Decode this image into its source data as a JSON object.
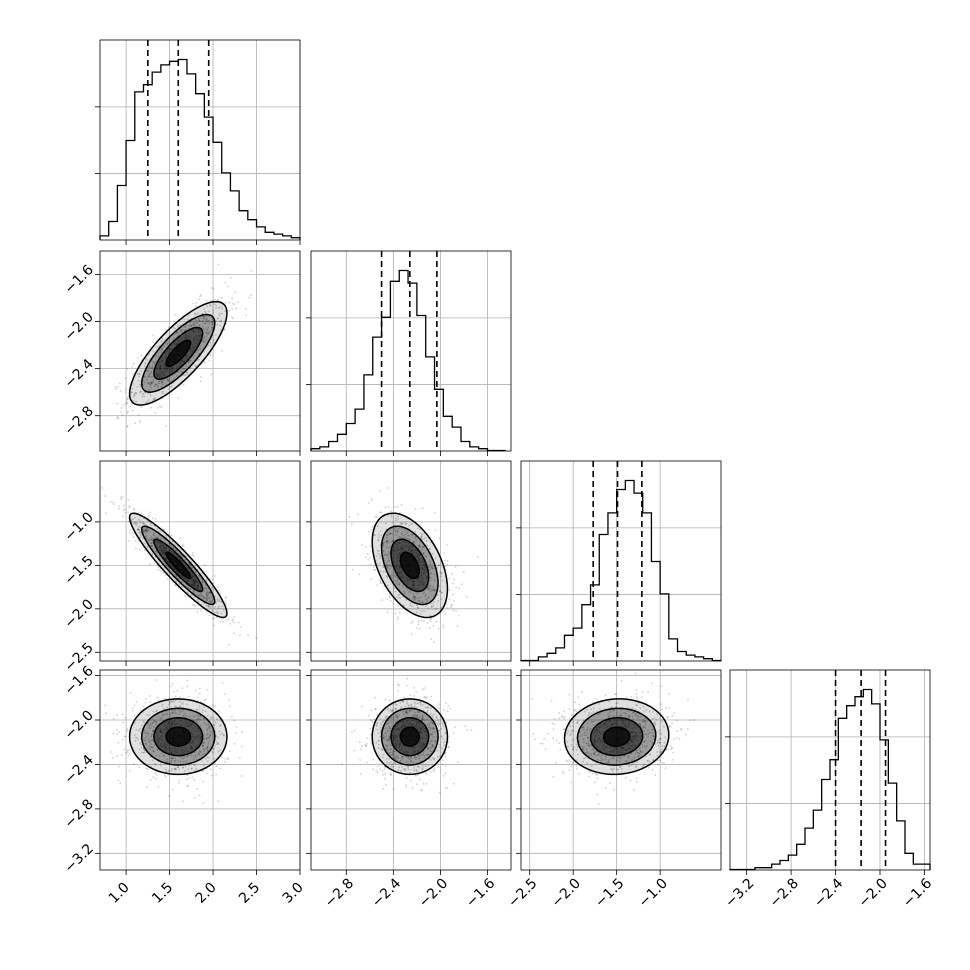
{
  "chart_data": {
    "type": "corner",
    "title": "",
    "n_params": 4,
    "param_labels": [
      "",
      "",
      "",
      ""
    ],
    "grid": true,
    "colors": {
      "line": "#000000",
      "grid": "#b0b0b0",
      "density": "#000000"
    },
    "params": [
      {
        "range": [
          0.7,
          3.0
        ],
        "ticks": [
          1.0,
          1.5,
          2.0,
          2.5,
          3.0
        ],
        "tick_labels": [
          "1.0",
          "1.5",
          "2.0",
          "2.5",
          "3.0"
        ],
        "quantiles": [
          1.25,
          1.6,
          1.95
        ],
        "hist_bins": [
          0.7,
          0.8,
          0.9,
          1.0,
          1.1,
          1.2,
          1.3,
          1.4,
          1.5,
          1.6,
          1.7,
          1.8,
          1.9,
          2.0,
          2.1,
          2.2,
          2.3,
          2.4,
          2.5,
          2.6,
          2.7,
          2.8,
          2.9,
          3.0
        ],
        "hist_counts": [
          0.02,
          0.1,
          0.3,
          0.55,
          0.82,
          0.86,
          0.93,
          0.97,
          0.99,
          1.0,
          0.92,
          0.81,
          0.68,
          0.54,
          0.37,
          0.27,
          0.16,
          0.11,
          0.07,
          0.04,
          0.03,
          0.02,
          0.01
        ]
      },
      {
        "range": [
          -3.1,
          -1.4
        ],
        "ticks": [
          -2.8,
          -2.4,
          -2.0,
          -1.6
        ],
        "tick_labels": [
          "−2.8",
          "−2.4",
          "−2.0",
          "−1.6"
        ],
        "quantiles": [
          -2.5,
          -2.26,
          -2.03
        ],
        "hist_bins": [
          -3.1,
          -3.025,
          -2.95,
          -2.875,
          -2.8,
          -2.725,
          -2.65,
          -2.575,
          -2.5,
          -2.425,
          -2.35,
          -2.275,
          -2.2,
          -2.125,
          -2.05,
          -1.975,
          -1.9,
          -1.825,
          -1.75,
          -1.675,
          -1.6,
          -1.525,
          -1.45
        ],
        "hist_counts": [
          0.01,
          0.02,
          0.05,
          0.09,
          0.15,
          0.23,
          0.42,
          0.63,
          0.74,
          0.94,
          1.0,
          0.93,
          0.75,
          0.52,
          0.34,
          0.19,
          0.13,
          0.05,
          0.02,
          0.01,
          0.0,
          0.0
        ]
      },
      {
        "range": [
          -2.6,
          -0.3
        ],
        "ticks": [
          -2.5,
          -2.0,
          -1.5,
          -1.0
        ],
        "tick_labels": [
          "−2.5",
          "−2.0",
          "−1.5",
          "−1.0"
        ],
        "quantiles": [
          -1.77,
          -1.49,
          -1.21
        ],
        "hist_bins": [
          -2.6,
          -2.5,
          -2.4,
          -2.3,
          -2.2,
          -2.1,
          -2.0,
          -1.9,
          -1.8,
          -1.7,
          -1.6,
          -1.5,
          -1.4,
          -1.3,
          -1.2,
          -1.1,
          -1.0,
          -0.9,
          -0.8,
          -0.7,
          -0.6,
          -0.5,
          -0.4,
          -0.3
        ],
        "hist_counts": [
          0.0,
          0.0,
          0.02,
          0.04,
          0.07,
          0.14,
          0.18,
          0.31,
          0.42,
          0.7,
          0.82,
          0.95,
          1.0,
          0.93,
          0.82,
          0.55,
          0.37,
          0.12,
          0.05,
          0.03,
          0.02,
          0.01,
          0.0
        ]
      },
      {
        "range": [
          -3.35,
          -1.55
        ],
        "ticks": [
          -3.2,
          -2.8,
          -2.4,
          -2.0,
          -1.6
        ],
        "tick_labels": [
          "−3.2",
          "−2.8",
          "−2.4",
          "−2.0",
          "−1.6"
        ],
        "quantiles": [
          -2.4,
          -2.17,
          -1.95
        ],
        "hist_bins": [
          -3.35,
          -3.275,
          -3.2,
          -3.125,
          -3.05,
          -2.975,
          -2.9,
          -2.825,
          -2.75,
          -2.675,
          -2.6,
          -2.525,
          -2.45,
          -2.375,
          -2.3,
          -2.225,
          -2.15,
          -2.075,
          -2.0,
          -1.925,
          -1.85,
          -1.775,
          -1.7,
          -1.625,
          -1.55
        ],
        "hist_counts": [
          0.0,
          0.0,
          0.0,
          0.01,
          0.01,
          0.03,
          0.05,
          0.08,
          0.14,
          0.23,
          0.33,
          0.5,
          0.61,
          0.84,
          0.91,
          0.96,
          1.0,
          0.92,
          0.72,
          0.48,
          0.27,
          0.09,
          0.03,
          0.03
        ]
      }
    ],
    "pairs": [
      {
        "x": 0,
        "y": 1,
        "mean": [
          1.6,
          -2.27
        ],
        "sd": [
          0.28,
          0.22
        ],
        "rho": 0.78
      },
      {
        "x": 0,
        "y": 2,
        "mean": [
          1.6,
          -1.5
        ],
        "sd": [
          0.28,
          0.3
        ],
        "rho": -0.92
      },
      {
        "x": 1,
        "y": 2,
        "mean": [
          -2.26,
          -1.5
        ],
        "sd": [
          0.16,
          0.3
        ],
        "rho": -0.45
      },
      {
        "x": 0,
        "y": 3,
        "mean": [
          1.6,
          -2.15
        ],
        "sd": [
          0.28,
          0.17
        ],
        "rho": 0.0
      },
      {
        "x": 1,
        "y": 3,
        "mean": [
          -2.26,
          -2.15
        ],
        "sd": [
          0.16,
          0.17
        ],
        "rho": 0.0
      },
      {
        "x": 2,
        "y": 3,
        "mean": [
          -1.5,
          -2.15
        ],
        "sd": [
          0.3,
          0.17
        ],
        "rho": 0.05
      }
    ],
    "contour_levels_sigma": [
      0.5,
      1.0,
      1.5,
      2.0
    ]
  }
}
